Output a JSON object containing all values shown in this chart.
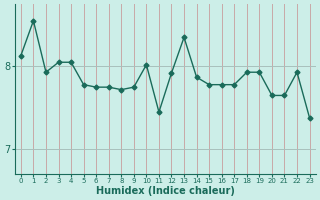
{
  "x": [
    0,
    1,
    2,
    3,
    4,
    5,
    6,
    7,
    8,
    9,
    10,
    11,
    12,
    13,
    14,
    15,
    16,
    17,
    18,
    19,
    20,
    21,
    22,
    23
  ],
  "y": [
    8.13,
    8.55,
    7.93,
    8.05,
    8.05,
    7.78,
    7.75,
    7.75,
    7.72,
    7.75,
    8.02,
    7.45,
    7.92,
    8.35,
    7.87,
    7.78,
    7.78,
    7.78,
    7.93,
    7.93,
    7.65,
    7.65,
    7.93,
    7.38
  ],
  "xlabel": "Humidex (Indice chaleur)",
  "bg_color": "#cceee8",
  "line_color": "#1a6b5a",
  "marker": "D",
  "marker_size": 2.5,
  "line_width": 1.0,
  "vgrid_color": "#c8a8a8",
  "hgrid_color": "#a8c0bc",
  "yticks": [
    7,
    8
  ],
  "ylim": [
    6.7,
    8.75
  ],
  "xlim": [
    -0.5,
    23.5
  ],
  "xlabel_color": "#1a6b5a",
  "tick_color": "#1a6b5a"
}
